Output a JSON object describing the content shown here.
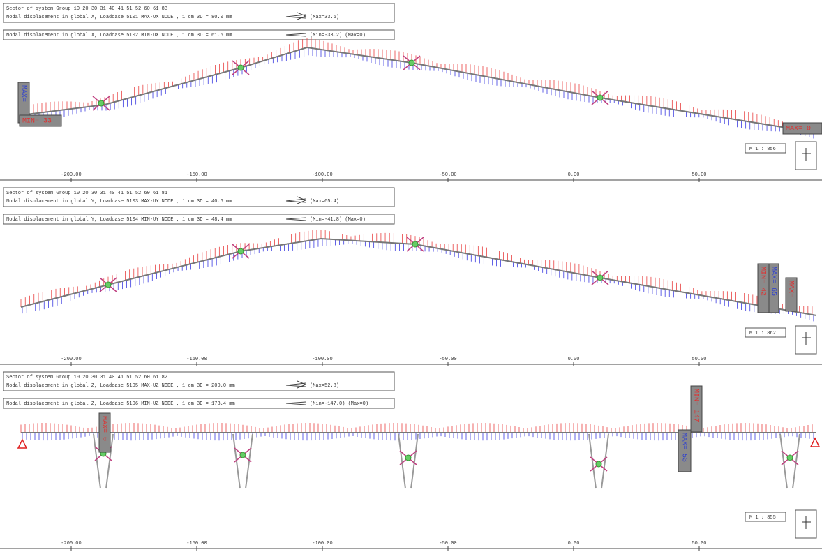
{
  "panels": [
    {
      "header": {
        "line1": "Sector of system Group 10 20 30 31 40 41 51 52 60 61 83",
        "line2": "Nodal displacement in global X, Loadcase 5101 MAX-UX NODE   , 1 cm 3D = 80.0 mm",
        "note": "(Max=33.6)"
      },
      "subheader": {
        "text": "Nodal displacement in global X, Loadcase 5102 MIN-UX NODE   , 1 cm 3D = 61.6 mm",
        "note": "(Min=-33.2) (Max=0)"
      },
      "scale": "M 1 : 856",
      "labels": [
        "MAX=",
        "MIN= 33",
        "MAX= 0"
      ],
      "ruler": [
        {
          "value": -200,
          "label": "-200.00"
        },
        {
          "value": -150,
          "label": "-150.00"
        },
        {
          "value": -100,
          "label": "-100.00"
        },
        {
          "value": -50,
          "label": "-50.00"
        },
        {
          "value": 0,
          "label": "0.00"
        },
        {
          "value": 50,
          "label": "50.00"
        }
      ]
    },
    {
      "header": {
        "line1": "Sector of system Group 10 20 30 31 40 41 51 52 60 61 81",
        "line2": "Nodal displacement in global Y, Loadcase 5103 MAX-UY NODE   , 1 cm 3D = 40.6 mm",
        "note": "(Max=65.4)"
      },
      "subheader": {
        "text": "Nodal displacement in global Y, Loadcase 5104 MIN-UY NODE   , 1 cm 3D = 48.4 mm",
        "note": "(Min=-41.8) (Max=0)"
      },
      "scale": "M 1 : 862",
      "labels": [
        "MIN= 42",
        "MAX= 65",
        "MAX="
      ],
      "ruler": [
        {
          "value": -200,
          "label": "-200.00"
        },
        {
          "value": -150,
          "label": "-150.00"
        },
        {
          "value": -100,
          "label": "-100.00"
        },
        {
          "value": -50,
          "label": "-50.00"
        },
        {
          "value": 0,
          "label": "0.00"
        },
        {
          "value": 50,
          "label": "50.00"
        }
      ]
    },
    {
      "header": {
        "line1": "Sector of system Group 10 20 30 31 40 41 51 52 60 61 82",
        "line2": "Nodal displacement in global Z, Loadcase 5105 MAX-UZ NODE   , 1 cm 3D = 200.0 mm",
        "note": "(Max=52.8)"
      },
      "subheader": {
        "text": "Nodal displacement in global Z, Loadcase 5106 MIN-UZ NODE   , 1 cm 3D = 173.4 mm",
        "note": "(Min=-147.0) (Max=0)"
      },
      "scale": "M 1 : 855",
      "labels": [
        "MAX= 0",
        "MIN= 147",
        "MAX= 53"
      ],
      "ruler": [
        {
          "value": -200,
          "label": "-200.00"
        },
        {
          "value": -150,
          "label": "-150.00"
        },
        {
          "value": -100,
          "label": "-100.00"
        },
        {
          "value": -50,
          "label": "-50.00"
        },
        {
          "value": 0,
          "label": "0.00"
        },
        {
          "value": 50,
          "label": "50.00"
        }
      ]
    }
  ]
}
